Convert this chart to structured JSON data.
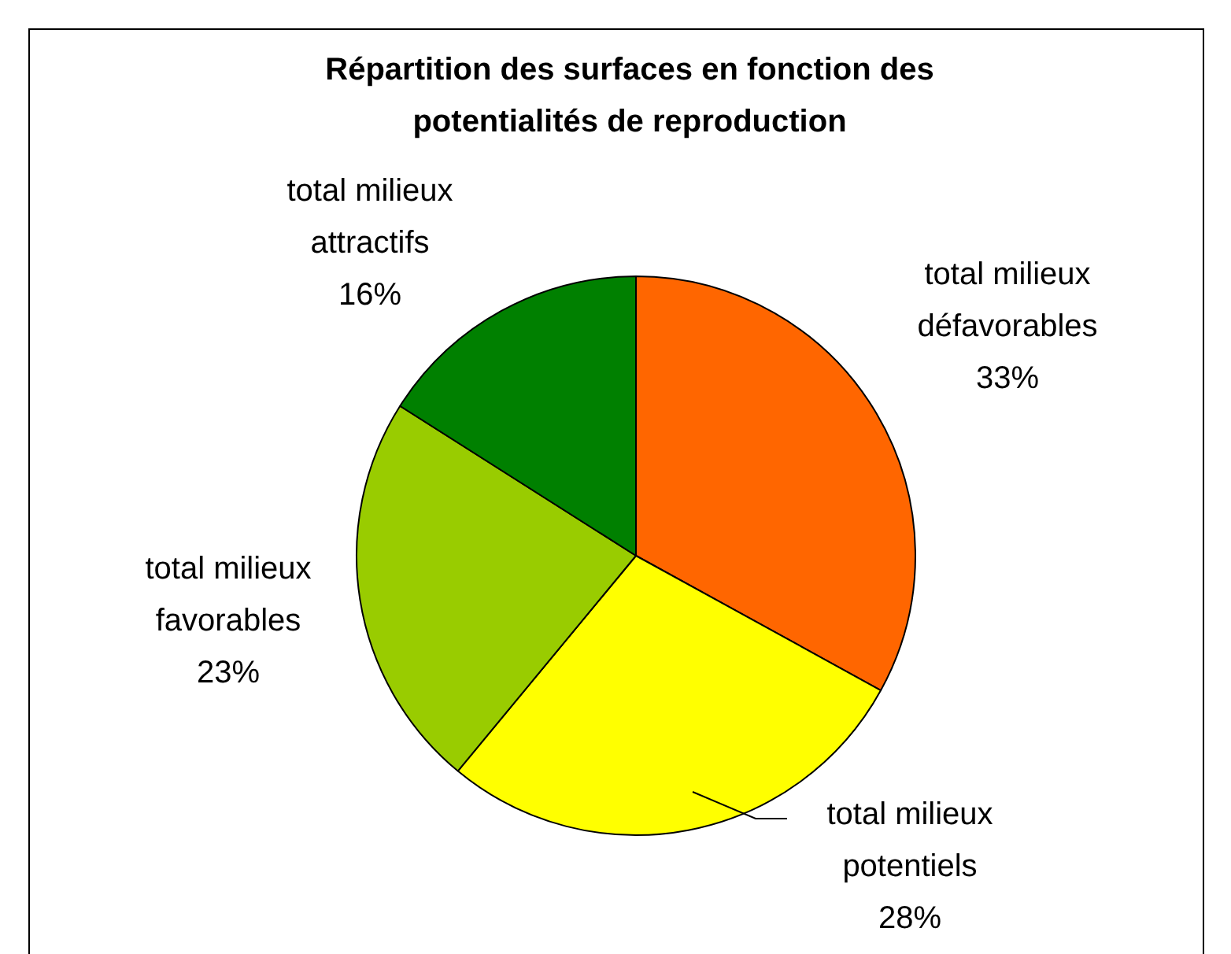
{
  "chart_data": {
    "type": "pie",
    "title": "Répartition des surfaces en fonction des potentialités de reproduction",
    "categories": [
      "total milieux défavorables",
      "total milieux potentiels",
      "total milieux favorables",
      "total milieux attractifs"
    ],
    "values": [
      33,
      28,
      23,
      16
    ],
    "value_labels": [
      "33%",
      "28%",
      "23%",
      "16%"
    ],
    "colors": [
      "#ff6600",
      "#ffff00",
      "#99cc00",
      "#008000"
    ]
  }
}
